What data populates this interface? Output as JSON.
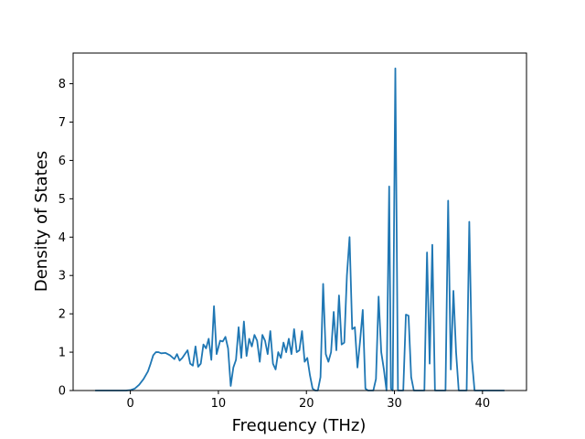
{
  "chart_data": {
    "type": "line",
    "title": "",
    "xlabel": "Frequency (THz)",
    "ylabel": "Density of States",
    "xlim": [
      -6.5,
      45
    ],
    "ylim": [
      0,
      8.8
    ],
    "xticks": [
      0,
      10,
      20,
      30,
      40
    ],
    "xtick_labels": [
      "0",
      "10",
      "20",
      "30",
      "40"
    ],
    "yticks": [
      0,
      1,
      2,
      3,
      4,
      5,
      6,
      7,
      8
    ],
    "ytick_labels": [
      "0",
      "1",
      "2",
      "3",
      "4",
      "5",
      "6",
      "7",
      "8"
    ],
    "grid": false,
    "legend": "none",
    "line_color": "#1f77b4",
    "series": [
      {
        "x": [
          -4,
          -2,
          -0.5,
          0,
          0.5,
          1,
          1.5,
          2,
          2.3,
          2.6,
          2.9,
          3.2,
          3.5,
          4.0,
          4.5,
          5.0,
          5.3,
          5.6,
          5.9,
          6.2,
          6.5,
          6.8,
          7.1,
          7.4,
          7.7,
          8.0,
          8.3,
          8.6,
          8.9,
          9.2,
          9.5,
          9.8,
          10.2,
          10.5,
          10.8,
          11.1,
          11.4,
          11.7,
          12.0,
          12.3,
          12.6,
          12.9,
          13.2,
          13.5,
          13.8,
          14.1,
          14.4,
          14.7,
          15.0,
          15.3,
          15.6,
          15.9,
          16.2,
          16.5,
          16.8,
          17.1,
          17.4,
          17.7,
          18.0,
          18.3,
          18.6,
          18.9,
          19.2,
          19.5,
          19.8,
          20.1,
          20.4,
          20.7,
          21.0,
          21.3,
          21.6,
          21.9,
          22.2,
          22.5,
          22.8,
          23.1,
          23.4,
          23.7,
          24.0,
          24.3,
          24.6,
          24.9,
          25.2,
          25.5,
          25.8,
          26.1,
          26.4,
          26.7,
          27.0,
          27.3,
          27.6,
          27.9,
          28.2,
          28.5,
          28.8,
          29.1,
          29.4,
          29.6,
          29.8,
          30.1,
          30.4,
          30.7,
          31.0,
          31.3,
          31.6,
          31.9,
          32.2,
          32.5,
          32.8,
          33.1,
          33.4,
          33.7,
          34.0,
          34.3,
          34.6,
          34.9,
          35.2,
          35.5,
          35.8,
          36.1,
          36.4,
          36.7,
          37.0,
          37.3,
          37.6,
          37.9,
          38.2,
          38.5,
          38.8,
          39.1,
          39.5,
          40,
          41,
          42.5
        ],
        "y": [
          0,
          0,
          0,
          0.01,
          0.05,
          0.15,
          0.3,
          0.5,
          0.7,
          0.92,
          1.0,
          1.0,
          0.97,
          0.98,
          0.92,
          0.82,
          0.95,
          0.78,
          0.85,
          0.95,
          1.05,
          0.7,
          0.65,
          1.15,
          0.62,
          0.7,
          1.2,
          1.1,
          1.35,
          0.8,
          2.2,
          0.95,
          1.3,
          1.28,
          1.4,
          1.1,
          0.12,
          0.6,
          0.8,
          1.65,
          0.85,
          1.8,
          0.9,
          1.35,
          1.15,
          1.45,
          1.3,
          0.75,
          1.45,
          1.3,
          0.95,
          1.55,
          0.7,
          0.55,
          1.0,
          0.85,
          1.25,
          1.0,
          1.35,
          0.95,
          1.6,
          1.0,
          1.05,
          1.55,
          0.75,
          0.85,
          0.4,
          0.05,
          0,
          0,
          0.35,
          2.78,
          0.95,
          0.75,
          1.0,
          2.05,
          1.05,
          2.48,
          1.2,
          1.25,
          3.0,
          4.0,
          1.6,
          1.65,
          0.6,
          1.3,
          2.1,
          0.05,
          0,
          0,
          0,
          0.3,
          2.45,
          1.0,
          0.55,
          0,
          5.32,
          0.05,
          0,
          8.4,
          0,
          0,
          0,
          1.98,
          1.95,
          0.35,
          0,
          0,
          0,
          0,
          0,
          3.6,
          0.7,
          3.8,
          0,
          0,
          0,
          0,
          0,
          4.95,
          0.55,
          2.6,
          1.0,
          0,
          0,
          0,
          0,
          4.4,
          0.8,
          0,
          0,
          0,
          0,
          0
        ]
      }
    ]
  }
}
